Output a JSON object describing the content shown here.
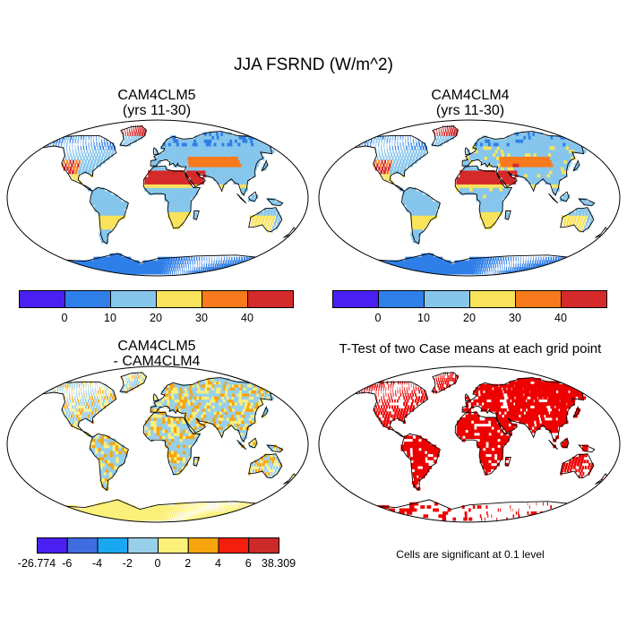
{
  "figure": {
    "main_title": "JJA FSRND (W/m^2)"
  },
  "panels": {
    "tl": {
      "title_line1": "CAM4CLM5",
      "title_line2": "(yrs 11-30)"
    },
    "tr": {
      "title_line1": "CAM4CLM4",
      "title_line2": "(yrs 11-30)"
    },
    "bl": {
      "title_line1": "CAM4CLM5",
      "title_line2": "- CAM4CLM4"
    },
    "br": {
      "title_line1": "T-Test of two Case means at each grid point",
      "note": "Cells are significant at 0.1 level"
    }
  },
  "colorbars": {
    "top": {
      "colors": [
        "#4a1ff2",
        "#2f7fe8",
        "#87c6ec",
        "#f8e35a",
        "#f97a1c",
        "#d52a2a"
      ],
      "labels": [
        "0",
        "10",
        "20",
        "30",
        "40"
      ]
    },
    "diff": {
      "colors": [
        "#4a1ff2",
        "#3f6de0",
        "#1aa7f2",
        "#98cfea",
        "#fbf07a",
        "#f8a40c",
        "#f51d0c",
        "#cc2a2a"
      ],
      "labels": [
        "-26.774",
        "-6",
        "-4",
        "-2",
        "0",
        "2",
        "4",
        "6",
        "38.309"
      ]
    }
  },
  "chart_data": {
    "type": "heatmap",
    "variable": "FSRND",
    "units": "W/m^2",
    "season": "JJA",
    "cases": [
      "CAM4CLM5",
      "CAM4CLM4"
    ],
    "years": "11-30",
    "mean_levels": [
      0,
      10,
      20,
      30,
      40
    ],
    "difference_levels": [
      -26.774,
      -6,
      -4,
      -2,
      0,
      2,
      4,
      6,
      38.309
    ],
    "significance_level": 0.1
  }
}
